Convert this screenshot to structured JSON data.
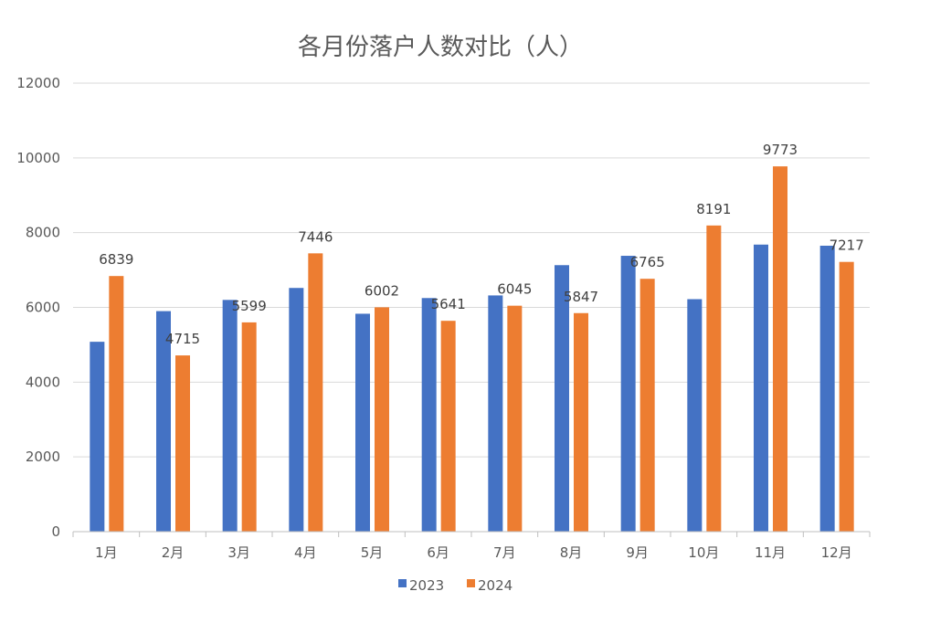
{
  "chart_data": {
    "type": "bar",
    "title": "各月份落户人数对比（人）",
    "xlabel": "",
    "ylabel": "",
    "categories": [
      "1月",
      "2月",
      "3月",
      "4月",
      "5月",
      "6月",
      "7月",
      "8月",
      "9月",
      "10月",
      "11月",
      "12月"
    ],
    "series": [
      {
        "name": "2023",
        "color": "#4472C4",
        "values": [
          5080,
          5900,
          6200,
          6520,
          5830,
          6250,
          6320,
          7130,
          7380,
          6220,
          7680,
          7650
        ]
      },
      {
        "name": "2024",
        "color": "#ED7D31",
        "values": [
          6839,
          4715,
          5599,
          7446,
          6002,
          5641,
          6045,
          5847,
          6765,
          8191,
          9773,
          7217
        ]
      }
    ],
    "data_labels_series": "2024",
    "ylim": [
      0,
      12000
    ],
    "yticks": [
      0,
      2000,
      4000,
      6000,
      8000,
      10000,
      12000
    ],
    "grid": true,
    "legend": "bottom"
  }
}
